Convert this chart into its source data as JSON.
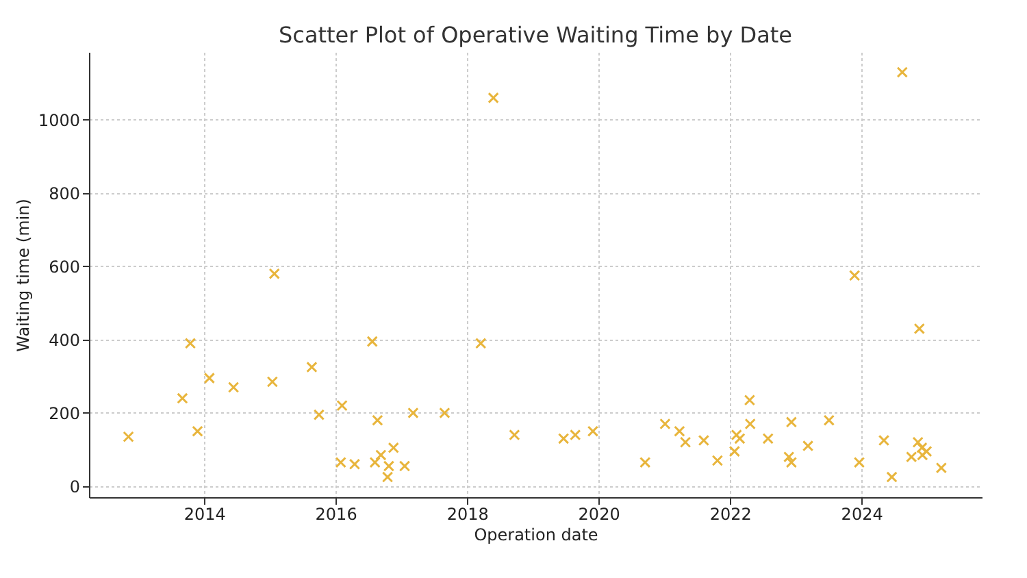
{
  "chart_data": {
    "type": "scatter",
    "title": "Scatter Plot of Operative Waiting Time by Date",
    "xlabel": "Operation date",
    "ylabel": "Waiting time (min)",
    "xlim": [
      "2012-04-01",
      "2025-10-31"
    ],
    "ylim": [
      -30,
      1185
    ],
    "xticks": [
      {
        "value": "2014-01-01",
        "label": "2014"
      },
      {
        "value": "2016-01-01",
        "label": "2016"
      },
      {
        "value": "2018-01-01",
        "label": "2018"
      },
      {
        "value": "2020-01-01",
        "label": "2020"
      },
      {
        "value": "2022-01-01",
        "label": "2022"
      },
      {
        "value": "2024-01-01",
        "label": "2024"
      }
    ],
    "yticks": [
      0,
      200,
      400,
      600,
      800,
      1000
    ],
    "grid": true,
    "marker": "cross",
    "series": [
      {
        "color": "#e8b53c",
        "x": [
          "2012-11-06",
          "2013-09-02",
          "2013-10-16",
          "2013-11-25",
          "2014-01-30",
          "2014-06-13",
          "2015-01-26",
          "2015-01-15",
          "2015-08-22",
          "2015-10-01",
          "2016-02-06",
          "2016-01-30",
          "2016-04-16",
          "2016-07-23",
          "2016-08-07",
          "2016-08-21",
          "2016-09-09",
          "2016-10-23",
          "2016-10-16",
          "2016-11-18",
          "2017-01-19",
          "2017-03-07",
          "2017-08-29",
          "2018-03-18",
          "2018-05-27",
          "2018-09-21",
          "2019-06-21",
          "2019-08-25",
          "2019-12-01",
          "2020-09-16",
          "2021-01-05",
          "2021-03-26",
          "2021-04-28",
          "2021-08-08",
          "2021-10-23",
          "2022-01-26",
          "2022-02-06",
          "2022-02-24",
          "2022-04-20",
          "2022-04-23",
          "2022-07-31",
          "2022-11-24",
          "2022-12-08",
          "2022-12-08",
          "2023-03-10",
          "2023-07-05",
          "2023-11-24",
          "2023-12-20",
          "2024-05-05",
          "2024-06-18",
          "2024-08-15",
          "2024-10-05",
          "2024-11-18",
          "2024-11-10",
          "2024-12-02",
          "2024-12-28",
          "2024-12-05",
          "2025-03-20"
        ],
        "values": [
          135,
          240,
          390,
          150,
          295,
          270,
          580,
          285,
          325,
          195,
          220,
          65,
          60,
          395,
          65,
          180,
          85,
          55,
          25,
          105,
          55,
          200,
          200,
          390,
          1060,
          140,
          130,
          140,
          150,
          65,
          170,
          150,
          120,
          125,
          70,
          95,
          140,
          130,
          235,
          170,
          130,
          80,
          65,
          175,
          110,
          180,
          575,
          65,
          125,
          25,
          1130,
          80,
          430,
          120,
          105,
          95,
          85,
          50
        ]
      }
    ]
  }
}
